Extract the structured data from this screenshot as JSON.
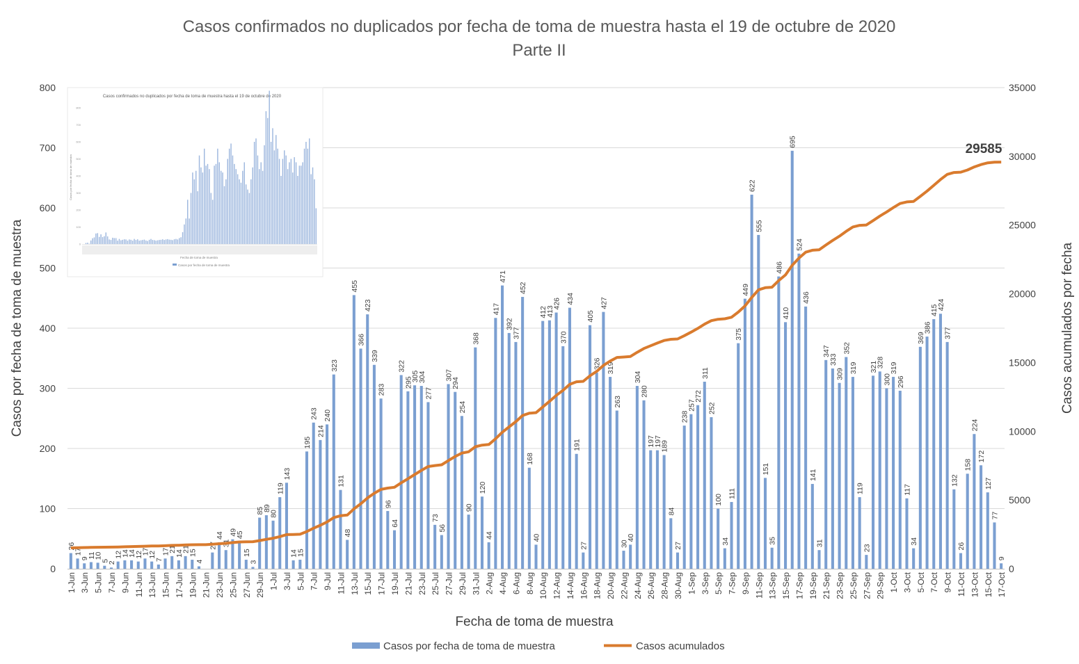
{
  "chart_data": {
    "type": "bar",
    "title": "Casos confirmados no duplicados por fecha de toma de muestra hasta el 19 de octubre de 2020",
    "subtitle": "Parte II",
    "xlabel": "Fecha de toma de muestra",
    "ylabel_left": "Casos por fecha de toma de muestra",
    "ylabel_right": "Casos acumulados por fecha",
    "ylim_left": [
      0,
      800
    ],
    "ylim_right": [
      0,
      35000
    ],
    "left_ticks": [
      "0",
      "100",
      "200",
      "300",
      "400",
      "500",
      "600",
      "700",
      "800"
    ],
    "right_ticks": [
      "0",
      "5000",
      "10000",
      "15000",
      "20000",
      "25000",
      "30000",
      "35000"
    ],
    "grid": true,
    "legend_position": "bottom",
    "final_cumulative_label": "29585",
    "colors": {
      "bars": "#7b9fd1",
      "line": "#d97b2e",
      "grid": "#d9d9d9",
      "text": "#404040",
      "title": "#595959"
    },
    "x": [
      "1-Jun",
      "2-Jun",
      "3-Jun",
      "4-Jun",
      "5-Jun",
      "6-Jun",
      "7-Jun",
      "8-Jun",
      "9-Jun",
      "10-Jun",
      "11-Jun",
      "12-Jun",
      "13-Jun",
      "14-Jun",
      "15-Jun",
      "16-Jun",
      "17-Jun",
      "18-Jun",
      "19-Jun",
      "20-Jun",
      "21-Jun",
      "22-Jun",
      "23-Jun",
      "24-Jun",
      "25-Jun",
      "26-Jun",
      "27-Jun",
      "28-Jun",
      "29-Jun",
      "30-Jun",
      "1-Jul",
      "2-Jul",
      "3-Jul",
      "4-Jul",
      "5-Jul",
      "6-Jul",
      "7-Jul",
      "8-Jul",
      "9-Jul",
      "10-Jul",
      "11-Jul",
      "12-Jul",
      "13-Jul",
      "14-Jul",
      "15-Jul",
      "16-Jul",
      "17-Jul",
      "18-Jul",
      "19-Jul",
      "20-Jul",
      "21-Jul",
      "22-Jul",
      "23-Jul",
      "24-Jul",
      "25-Jul",
      "26-Jul",
      "27-Jul",
      "28-Jul",
      "29-Jul",
      "30-Jul",
      "31-Jul",
      "1-Aug",
      "2-Aug",
      "3-Aug",
      "4-Aug",
      "5-Aug",
      "6-Aug",
      "7-Aug",
      "8-Aug",
      "9-Aug",
      "10-Aug",
      "11-Aug",
      "12-Aug",
      "13-Aug",
      "14-Aug",
      "15-Aug",
      "16-Aug",
      "17-Aug",
      "18-Aug",
      "19-Aug",
      "20-Aug",
      "21-Aug",
      "22-Aug",
      "23-Aug",
      "24-Aug",
      "25-Aug",
      "26-Aug",
      "27-Aug",
      "28-Aug",
      "29-Aug",
      "30-Aug",
      "31-Aug",
      "1-Sep",
      "2-Sep",
      "3-Sep",
      "4-Sep",
      "5-Sep",
      "6-Sep",
      "7-Sep",
      "8-Sep",
      "9-Sep",
      "10-Sep",
      "11-Sep",
      "12-Sep",
      "13-Sep",
      "14-Sep",
      "15-Sep",
      "16-Sep",
      "17-Sep",
      "18-Sep",
      "19-Sep",
      "20-Sep",
      "21-Sep",
      "22-Sep",
      "23-Sep",
      "24-Sep",
      "25-Sep",
      "26-Sep",
      "27-Sep",
      "28-Sep",
      "29-Sep",
      "30-Sep",
      "1-Oct",
      "2-Oct",
      "3-Oct",
      "4-Oct",
      "5-Oct",
      "6-Oct",
      "7-Oct",
      "8-Oct",
      "9-Oct",
      "10-Oct",
      "11-Oct",
      "12-Oct",
      "13-Oct",
      "14-Oct",
      "15-Oct",
      "16-Oct",
      "17-Oct"
    ],
    "tick_labels": [
      "1-Jun",
      "3-Jun",
      "5-Jun",
      "7-Jun",
      "9-Jun",
      "11-Jun",
      "13-Jun",
      "15-Jun",
      "17-Jun",
      "19-Jun",
      "21-Jun",
      "23-Jun",
      "25-Jun",
      "27-Jun",
      "29-Jun",
      "1-Jul",
      "3-Jul",
      "5-Jul",
      "7-Jul",
      "9-Jul",
      "11-Jul",
      "13-Jul",
      "15-Jul",
      "17-Jul",
      "19-Jul",
      "21-Jul",
      "23-Jul",
      "25-Jul",
      "27-Jul",
      "29-Jul",
      "31-Jul",
      "2-Aug",
      "4-Aug",
      "6-Aug",
      "8-Aug",
      "10-Aug",
      "12-Aug",
      "14-Aug",
      "16-Aug",
      "18-Aug",
      "20-Aug",
      "22-Aug",
      "24-Aug",
      "26-Aug",
      "28-Aug",
      "30-Aug",
      "1-Sep",
      "3-Sep",
      "5-Sep",
      "7-Sep",
      "9-Sep",
      "11-Sep",
      "13-Sep",
      "15-Sep",
      "17-Sep",
      "19-Sep",
      "21-Sep",
      "23-Sep",
      "25-Sep",
      "27-Sep",
      "29-Sep",
      "1-Oct",
      "3-Oct",
      "5-Oct",
      "7-Oct",
      "9-Oct",
      "11-Oct",
      "13-Oct",
      "15-Oct",
      "17-Oct"
    ],
    "series": [
      {
        "name": "Casos por fecha de toma de muestra",
        "type": "bar",
        "axis": "left",
        "values": [
          26,
          17,
          9,
          11,
          10,
          5,
          2,
          12,
          14,
          14,
          12,
          17,
          12,
          7,
          17,
          21,
          14,
          21,
          15,
          4,
          0,
          27,
          44,
          31,
          49,
          45,
          15,
          3,
          85,
          89,
          80,
          119,
          143,
          14,
          15,
          195,
          243,
          214,
          240,
          323,
          131,
          48,
          455,
          366,
          423,
          339,
          283,
          96,
          64,
          322,
          295,
          305,
          304,
          277,
          73,
          56,
          307,
          294,
          254,
          90,
          368,
          120,
          44,
          417,
          471,
          392,
          377,
          452,
          168,
          40,
          412,
          413,
          426,
          370,
          434,
          191,
          27,
          405,
          326,
          427,
          319,
          263,
          30,
          40,
          304,
          280,
          197,
          197,
          189,
          84,
          27,
          238,
          257,
          272,
          311,
          252,
          100,
          34,
          111,
          375,
          449,
          622,
          555,
          151,
          35,
          486,
          410,
          695,
          524,
          436,
          141,
          31,
          347,
          333,
          309,
          352,
          319,
          119,
          23,
          321,
          328,
          300,
          319,
          296,
          117,
          34,
          369,
          386,
          415,
          424,
          377,
          132,
          26,
          158,
          224,
          172,
          127,
          77,
          9
        ],
        "labels": [
          "26",
          "17",
          "9",
          "11",
          "10",
          "5",
          "2",
          "12",
          "14",
          "14",
          "12",
          "17",
          "12",
          "7",
          "17",
          "21",
          "14",
          "21",
          "15",
          "4",
          "",
          "27",
          "44",
          "31",
          "49",
          "45",
          "15",
          "3",
          "85",
          "89",
          "80",
          "119",
          "143",
          "14",
          "15",
          "195",
          "243",
          "214",
          "240",
          "323",
          "131",
          "48",
          "455",
          "366",
          "423",
          "339",
          "283",
          "96",
          "64",
          "322",
          "295",
          "305",
          "304",
          "277",
          "73",
          "56",
          "307",
          "294",
          "254",
          "90",
          "368",
          "120",
          "44",
          "417",
          "471",
          "392",
          "377",
          "452",
          "168",
          "40",
          "412",
          "413",
          "426",
          "370",
          "434",
          "191",
          "27",
          "405",
          "326",
          "427",
          "319",
          "263",
          "30",
          "40",
          "304",
          "280",
          "197",
          "197",
          "189",
          "84",
          "27",
          "238",
          "257",
          "272",
          "311",
          "252",
          "100",
          "34",
          "111",
          "375",
          "449",
          "622",
          "555",
          "151",
          "35",
          "486",
          "410",
          "695",
          "524",
          "436",
          "141",
          "31",
          "347",
          "333",
          "309",
          "352",
          "319",
          "119",
          "23",
          "321",
          "328",
          "300",
          "319",
          "296",
          "117",
          "34",
          "369",
          "386",
          "415",
          "424",
          "377",
          "132",
          "26",
          "158",
          "224",
          "172",
          "127",
          "77",
          "9"
        ]
      },
      {
        "name": "Casos acumulados",
        "type": "line",
        "axis": "right",
        "values": [
          1517,
          1534,
          1543,
          1554,
          1564,
          1569,
          1571,
          1583,
          1597,
          1611,
          1623,
          1640,
          1652,
          1659,
          1676,
          1697,
          1711,
          1732,
          1747,
          1751,
          1751,
          1778,
          1822,
          1853,
          1902,
          1947,
          1962,
          1965,
          2050,
          2139,
          2219,
          2338,
          2481,
          2495,
          2510,
          2705,
          2948,
          3162,
          3402,
          3725,
          3856,
          3904,
          4359,
          4725,
          5148,
          5487,
          5770,
          5866,
          5930,
          6252,
          6547,
          6852,
          7156,
          7433,
          7506,
          7562,
          7869,
          8163,
          8417,
          8507,
          8875,
          8995,
          9039,
          9456,
          9927,
          10319,
          10696,
          11148,
          11316,
          11356,
          11768,
          12181,
          12607,
          12977,
          13411,
          13602,
          13629,
          14034,
          14360,
          14787,
          15106,
          15369,
          15399,
          15439,
          15743,
          16023,
          16220,
          16417,
          16606,
          16690,
          16717,
          16955,
          17212,
          17484,
          17795,
          18047,
          18147,
          18181,
          18292,
          18667,
          19116,
          19738,
          20293,
          20444,
          20479,
          20965,
          21375,
          22070,
          22594,
          23030,
          23171,
          23202,
          23549,
          23882,
          24191,
          24543,
          24862,
          24981,
          25004,
          25325,
          25653,
          25953,
          26272,
          26568,
          26685,
          26719,
          27088,
          27474,
          27889,
          28313,
          28690,
          28822,
          28848,
          29006,
          29230,
          29402,
          29529,
          29576,
          29585
        ]
      }
    ]
  },
  "legend": {
    "bar_label": "Casos por fecha de toma de muestra",
    "line_label": "Casos acumulados"
  },
  "inset": {
    "title": "Casos confirmados no duplicados por fecha de toma de muestra hasta el 19 de octubre de 2020",
    "ylabel": "Casos por fecha de toma de muestra",
    "xlabel": "Fecha de toma de muestra",
    "legend_label": "Casos por fecha de toma de muestra",
    "ticks": [
      "0",
      "100",
      "200",
      "300",
      "400",
      "500",
      "600",
      "700",
      "800"
    ],
    "values": [
      0,
      0,
      6,
      8,
      2,
      21,
      34,
      39,
      62,
      64,
      42,
      57,
      41,
      46,
      68,
      45,
      27,
      24,
      37,
      35,
      35,
      20,
      30,
      22,
      25,
      28,
      27,
      20,
      27,
      25,
      20,
      30,
      24,
      28,
      20,
      22,
      24,
      26,
      21,
      18,
      25,
      30,
      24,
      23,
      20,
      22,
      24,
      25,
      28,
      24,
      27,
      29,
      26,
      25,
      23,
      28,
      30,
      27,
      35,
      40,
      70,
      115,
      150,
      260,
      150,
      300,
      420,
      380,
      430,
      310,
      520,
      450,
      420,
      560,
      460,
      470,
      440,
      300,
      260,
      460,
      470,
      560,
      480,
      430,
      420,
      340,
      380,
      500,
      560,
      590,
      520,
      470,
      440,
      410,
      380,
      360,
      430,
      480,
      350,
      320,
      300,
      380,
      450,
      600,
      620,
      520,
      440,
      480,
      430,
      580,
      780,
      740,
      900,
      600,
      680,
      550,
      640,
      560,
      500,
      400,
      500,
      550,
      520,
      440,
      480,
      500,
      420,
      510,
      480,
      400,
      460,
      460,
      480,
      560,
      600,
      560,
      620,
      410,
      450,
      380,
      210
    ]
  }
}
